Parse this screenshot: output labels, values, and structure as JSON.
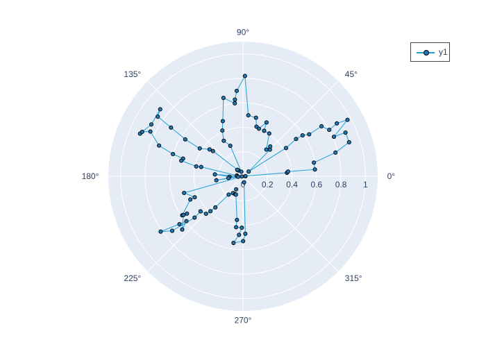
{
  "colors": {
    "background": "#ffffff",
    "polar_bg": "#e5ecf6",
    "grid": "#ffffff",
    "line": "#1f9fd8",
    "marker_fill": "#1f77b4",
    "marker_edge": "#000000",
    "text": "#2a3f5f",
    "legend_border": "#444444"
  },
  "chart_data": {
    "type": "line",
    "subtype": "polar",
    "radial_range": [
      0,
      1.1
    ],
    "radial_ticks": [
      0,
      0.2,
      0.4,
      0.6,
      0.8,
      1
    ],
    "radial_tick_labels": [
      "0",
      "0.2",
      "0.4",
      "0.6",
      "0.8",
      "1"
    ],
    "angular_ticks": [
      0,
      45,
      90,
      135,
      180,
      225,
      270,
      315
    ],
    "angular_tick_labels": [
      "0°",
      "45°",
      "90°",
      "135°",
      "180°",
      "225°",
      "270°",
      "315°"
    ],
    "grid": true,
    "legend_position": "top-right",
    "series": [
      {
        "name": "y1",
        "mode": "lines+markers",
        "points": [
          [
            0.02,
            0.0
          ],
          [
            0.02,
            6.0
          ],
          [
            0.36,
            4.6
          ],
          [
            0.37,
            6.0
          ],
          [
            0.59,
            5.4
          ],
          [
            0.59,
            10.9
          ],
          [
            0.78,
            14.4
          ],
          [
            0.91,
            17.8
          ],
          [
            0.91,
            23.1
          ],
          [
            0.81,
            23.5
          ],
          [
            0.97,
            28.4
          ],
          [
            0.88,
            29.4
          ],
          [
            0.8,
            28.3
          ],
          [
            0.76,
            32.5
          ],
          [
            0.64,
            32.4
          ],
          [
            0.59,
            34.5
          ],
          [
            0.53,
            35.1
          ],
          [
            0.42,
            33.3
          ],
          [
            0.06,
            40.0
          ],
          [
            0.31,
            44.7
          ],
          [
            0.33,
            47.6
          ],
          [
            0.29,
            48.9
          ],
          [
            0.41,
            58.5
          ],
          [
            0.41,
            65.1
          ],
          [
            0.48,
            66.4
          ],
          [
            0.41,
            71.5
          ],
          [
            0.42,
            74.8
          ],
          [
            0.49,
            77.5
          ],
          [
            0.5,
            85.0
          ],
          [
            0.82,
            88.9
          ],
          [
            0.7,
            94.2
          ],
          [
            0.63,
            96.0
          ],
          [
            0.6,
            96.4
          ],
          [
            0.66,
            104.0
          ],
          [
            0.48,
            110.1
          ],
          [
            0.41,
            114.3
          ],
          [
            0.33,
            118.4
          ],
          [
            0.27,
            112.6
          ],
          [
            0.04,
            109.9
          ],
          [
            0.06,
            128.8
          ],
          [
            0.07,
            131.8
          ],
          [
            0.07,
            130.6
          ],
          [
            0.32,
            140.0
          ],
          [
            0.35,
            141.2
          ],
          [
            0.42,
            147.2
          ],
          [
            0.56,
            147.4
          ],
          [
            0.71,
            145.9
          ],
          [
            0.85,
            145.0
          ],
          [
            0.87,
            141.0
          ],
          [
            0.86,
            150.5
          ],
          [
            0.91,
            157.5
          ],
          [
            0.9,
            156.2
          ],
          [
            0.84,
            154.2
          ],
          [
            0.73,
            159.9
          ],
          [
            0.6,
            162.4
          ],
          [
            0.51,
            163.6
          ],
          [
            0.52,
            165.8
          ],
          [
            0.39,
            168.1
          ],
          [
            0.35,
            167.4
          ],
          [
            0.05,
            173.4
          ],
          [
            0.05,
            177.1
          ],
          [
            0.23,
            176.2
          ],
          [
            0.11,
            182.0
          ],
          [
            0.04,
            186.1
          ],
          [
            0.22,
            188.5
          ],
          [
            0.12,
            186.8
          ],
          [
            0.01,
            190.0
          ],
          [
            0.5,
            195.8
          ],
          [
            0.43,
            203.5
          ],
          [
            0.47,
            203.8
          ],
          [
            0.59,
            212.7
          ],
          [
            0.55,
            213.7
          ],
          [
            0.58,
            213.0
          ],
          [
            0.66,
            221.2
          ],
          [
            0.59,
            218.4
          ],
          [
            0.65,
            217.0
          ],
          [
            0.81,
            213.9
          ],
          [
            0.73,
            217.6
          ],
          [
            0.52,
            220.5
          ],
          [
            0.45,
            219.6
          ],
          [
            0.43,
            225.4
          ],
          [
            0.39,
            227.0
          ],
          [
            0.34,
            228.4
          ],
          [
            0.19,
            232.0
          ],
          [
            0.16,
            239.3
          ],
          [
            0.12,
            242.3
          ],
          [
            0.16,
            246.6
          ],
          [
            0.16,
            248.9
          ],
          [
            0.36,
            262.1
          ],
          [
            0.42,
            262.3
          ],
          [
            0.42,
            268.7
          ],
          [
            0.48,
            266.1
          ],
          [
            0.55,
            261.9
          ],
          [
            0.53,
            270.1
          ],
          [
            0.47,
            272.3
          ],
          [
            0.05,
            280.0
          ]
        ]
      }
    ]
  }
}
